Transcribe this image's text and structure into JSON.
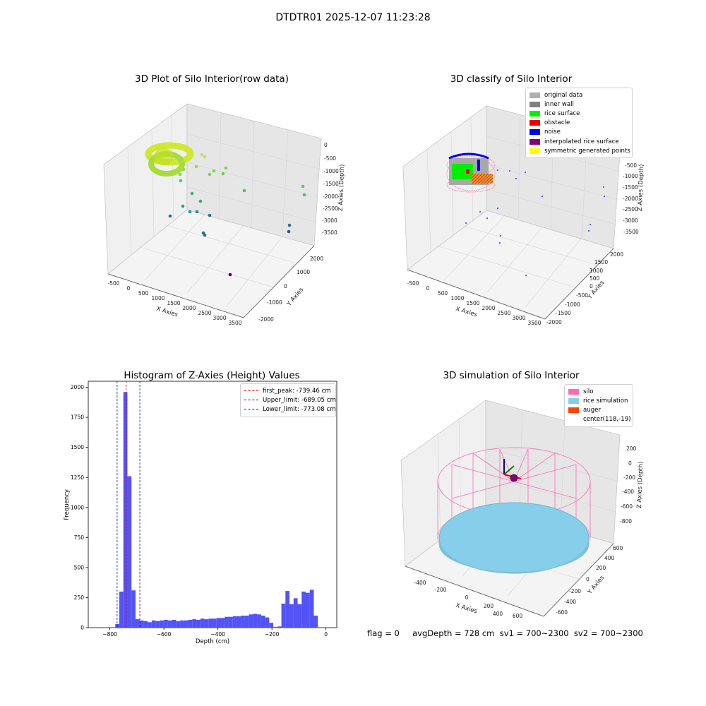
{
  "suptitle": "DTDTR01 2025-12-07 11:23:28",
  "colors": {
    "original": "#b0b0b0",
    "inner_wall": "#808080",
    "rice_surface": "#00ee00",
    "obstacle": "#ee0000",
    "noise": "#0000ee",
    "interpolated": "#800080",
    "symmetric": "#ffff00",
    "silo": "#ff69b4",
    "rice_sim": "#87ceeb",
    "auger": "#ff4500",
    "hist_bar": "#4a4af5",
    "peak_line": "#e60000",
    "limit_line": "#1010a0"
  },
  "panels": {
    "raw": {
      "title": "3D Plot of Silo Interior(row data)",
      "xlabel": "X Axies",
      "ylabel": "Y Axies",
      "zlabel": "Z Axies (Depth)",
      "xticks": [
        "-500",
        "0",
        "500",
        "1000",
        "1500",
        "2000",
        "2500",
        "3000",
        "3500"
      ],
      "yticks": [
        "-2000",
        "-1000",
        "0",
        "1000",
        "2000"
      ],
      "zticks": [
        "0",
        "-500",
        "-1000",
        "-1500",
        "-2000",
        "-2500",
        "-3000",
        "-3500"
      ]
    },
    "classify": {
      "title": "3D classify of Silo Interior",
      "xlabel": "X Axies",
      "ylabel": "Y Axies",
      "zlabel": "Z Axies (Depth)",
      "xticks": [
        "-500",
        "0",
        "500",
        "1000",
        "1500",
        "2000",
        "2500",
        "3000",
        "3500"
      ],
      "yticks": [
        "-2000",
        "-1500",
        "-1000",
        "-500",
        "0",
        "500",
        "1000",
        "1500",
        "2000"
      ],
      "zticks": [
        "0",
        "-500",
        "-1000",
        "-1500",
        "-2000",
        "-2500",
        "-3000",
        "-3500"
      ],
      "legend": [
        {
          "label": "original data",
          "color": "#b0b0b0"
        },
        {
          "label": "inner wall",
          "color": "#808080"
        },
        {
          "label": "rice surface",
          "color": "#00ee00"
        },
        {
          "label": "obstacle",
          "color": "#ee0000"
        },
        {
          "label": "noise",
          "color": "#0000ee"
        },
        {
          "label": "interpolated rice surface",
          "color": "#800080"
        },
        {
          "label": "symmetric generated points",
          "color": "#ffff00"
        }
      ]
    },
    "simulation": {
      "title": "3D simulation of Silo Interior",
      "xlabel": "X Axies",
      "ylabel": "Y Axies",
      "zlabel": "Z Axies (Depth)",
      "xticks": [
        "-400",
        "-200",
        "0",
        "200",
        "400",
        "600"
      ],
      "yticks": [
        "-600",
        "-400",
        "-200",
        "0",
        "200",
        "400",
        "600"
      ],
      "zticks": [
        "200",
        "0",
        "-200",
        "-400",
        "-600",
        "-800"
      ],
      "legend": [
        {
          "label": "silo",
          "color": "#ff69b4"
        },
        {
          "label": "rice simulation",
          "color": "#87ceeb"
        },
        {
          "label": "auger",
          "color": "#ff4500"
        },
        {
          "label": "center(118,-19)",
          "color": ""
        }
      ],
      "footer": "flag = 0     avgDepth = 728 cm  sv1 = 700~2300  sv2 = 700~2300"
    }
  },
  "chart_data": {
    "type": "bar",
    "title": "Histogram of Z-Axies (Height) Values",
    "xlabel": "Depth (cm)",
    "ylabel": "Frequency",
    "xlim": [
      -880,
      40
    ],
    "ylim": [
      0,
      2050
    ],
    "xticks": [
      -800,
      -600,
      -400,
      -200,
      0
    ],
    "yticks": [
      0,
      250,
      500,
      750,
      1000,
      1250,
      1500,
      1750,
      2000
    ],
    "bin_width": 15,
    "bins": [
      {
        "x0": -780,
        "count": 30
      },
      {
        "x0": -765,
        "count": 300
      },
      {
        "x0": -750,
        "count": 1960
      },
      {
        "x0": -735,
        "count": 1260
      },
      {
        "x0": -720,
        "count": 310
      },
      {
        "x0": -705,
        "count": 70
      },
      {
        "x0": -690,
        "count": 60
      },
      {
        "x0": -675,
        "count": 55
      },
      {
        "x0": -660,
        "count": 45
      },
      {
        "x0": -645,
        "count": 60
      },
      {
        "x0": -630,
        "count": 55
      },
      {
        "x0": -615,
        "count": 60
      },
      {
        "x0": -600,
        "count": 65
      },
      {
        "x0": -585,
        "count": 60
      },
      {
        "x0": -570,
        "count": 65
      },
      {
        "x0": -555,
        "count": 55
      },
      {
        "x0": -540,
        "count": 60
      },
      {
        "x0": -525,
        "count": 60
      },
      {
        "x0": -510,
        "count": 65
      },
      {
        "x0": -495,
        "count": 70
      },
      {
        "x0": -480,
        "count": 65
      },
      {
        "x0": -465,
        "count": 75
      },
      {
        "x0": -450,
        "count": 70
      },
      {
        "x0": -435,
        "count": 75
      },
      {
        "x0": -420,
        "count": 75
      },
      {
        "x0": -405,
        "count": 80
      },
      {
        "x0": -390,
        "count": 80
      },
      {
        "x0": -375,
        "count": 90
      },
      {
        "x0": -360,
        "count": 90
      },
      {
        "x0": -345,
        "count": 95
      },
      {
        "x0": -330,
        "count": 95
      },
      {
        "x0": -315,
        "count": 100
      },
      {
        "x0": -300,
        "count": 100
      },
      {
        "x0": -285,
        "count": 110
      },
      {
        "x0": -270,
        "count": 115
      },
      {
        "x0": -255,
        "count": 110
      },
      {
        "x0": -240,
        "count": 100
      },
      {
        "x0": -225,
        "count": 85
      },
      {
        "x0": -210,
        "count": 40
      },
      {
        "x0": -195,
        "count": 5
      },
      {
        "x0": -180,
        "count": 10
      },
      {
        "x0": -165,
        "count": 200
      },
      {
        "x0": -150,
        "count": 305
      },
      {
        "x0": -135,
        "count": 195
      },
      {
        "x0": -120,
        "count": 245
      },
      {
        "x0": -105,
        "count": 195
      },
      {
        "x0": -90,
        "count": 300
      },
      {
        "x0": -75,
        "count": 290
      },
      {
        "x0": -60,
        "count": 315
      },
      {
        "x0": -45,
        "count": 100
      }
    ],
    "vlines": [
      {
        "x": -739.46,
        "label": "first_peak: -739.46 cm",
        "color": "#e60000"
      },
      {
        "x": -689.05,
        "label": "Upper_limit: -689.05 cm",
        "color": "#1010a0"
      },
      {
        "x": -773.08,
        "label": "Lower_limit: -773.08 cm",
        "color": "#1010a0"
      }
    ],
    "legend_position": "top-right"
  }
}
